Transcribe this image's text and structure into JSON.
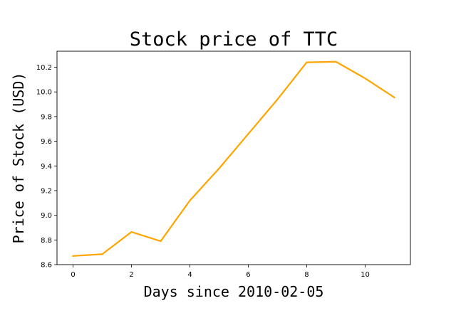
{
  "chart_data": {
    "type": "line",
    "title": "Stock price of TTC",
    "xlabel": "Days since 2010-02-05",
    "ylabel": "Price of Stock (USD)",
    "xlim": [
      -0.55,
      11.55
    ],
    "ylim": [
      8.6,
      10.33
    ],
    "xticks": [
      0,
      2,
      4,
      6,
      8,
      10
    ],
    "yticks": [
      8.6,
      8.8,
      9.0,
      9.2,
      9.4,
      9.6,
      9.8,
      10.0,
      10.2
    ],
    "grid": false,
    "legend": "none",
    "series": [
      {
        "color": "#FFA500",
        "x": [
          0,
          1,
          2,
          3,
          4,
          5,
          6,
          7,
          8,
          9,
          10,
          11
        ],
        "y": [
          8.67,
          8.685,
          8.865,
          8.79,
          9.12,
          9.38,
          9.66,
          9.94,
          10.24,
          10.245,
          10.11,
          9.955
        ]
      }
    ]
  }
}
